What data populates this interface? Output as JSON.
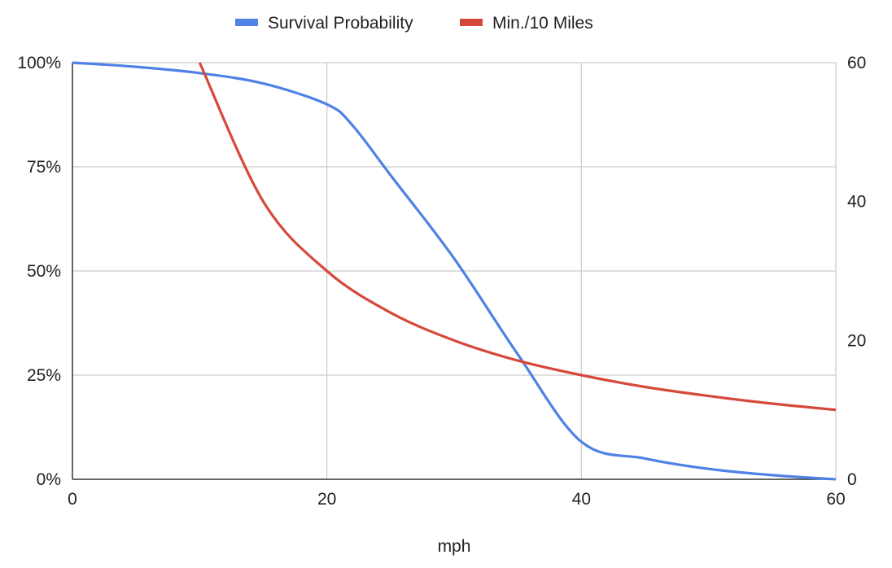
{
  "chart_data": {
    "type": "line",
    "title": "",
    "xlabel": "mph",
    "ylabel": "",
    "y2label": "",
    "xlim": [
      0,
      60
    ],
    "ylim": [
      0,
      1
    ],
    "y2lim": [
      0,
      60
    ],
    "grid": true,
    "legend_position": "top",
    "x_ticks": [
      "0",
      "20",
      "40",
      "60"
    ],
    "y_ticks": [
      "0%",
      "25%",
      "50%",
      "75%",
      "100%"
    ],
    "y2_ticks": [
      "0",
      "20",
      "40",
      "60"
    ],
    "series": [
      {
        "name": "Survival Probability",
        "axis": "left",
        "color": "#4f81e6",
        "x": [
          0,
          5,
          10,
          15,
          20,
          22,
          25,
          30,
          35,
          40,
          45,
          50,
          55,
          60
        ],
        "y": [
          1.0,
          0.99,
          0.975,
          0.95,
          0.9,
          0.85,
          0.73,
          0.53,
          0.3,
          0.09,
          0.05,
          0.025,
          0.01,
          0.0
        ]
      },
      {
        "name": "Min./10 Miles",
        "axis": "right",
        "color": "#d6493a",
        "x": [
          10,
          15,
          20,
          25,
          30,
          35,
          40,
          45,
          50,
          55,
          60
        ],
        "y": [
          60,
          40,
          30,
          24,
          20,
          17.1,
          15,
          13.3,
          12,
          10.9,
          10
        ]
      }
    ]
  }
}
